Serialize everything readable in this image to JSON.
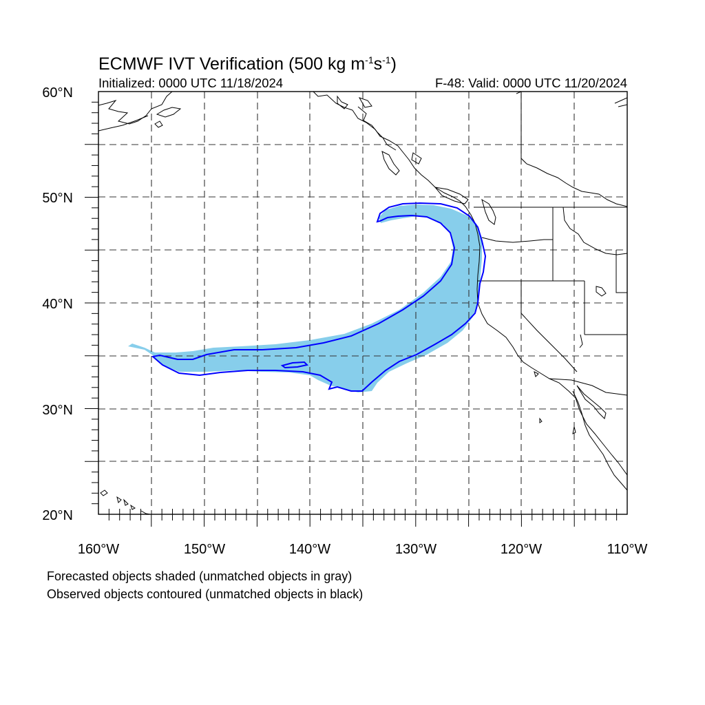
{
  "title": {
    "main": "ECMWF IVT Verification (500 kg m",
    "exp1": "-1",
    "mid": "s",
    "exp2": "-1",
    "end": ")"
  },
  "subtitle": {
    "initialized": "Initialized: 0000 UTC 11/18/2024",
    "valid": "F-48: Valid: 0000 UTC 11/20/2024"
  },
  "map": {
    "lon_range": [
      -160,
      -110
    ],
    "lat_range": [
      20,
      60
    ],
    "lon_labels": [
      "160°W",
      "150°W",
      "140°W",
      "130°W",
      "120°W",
      "110°W"
    ],
    "lat_labels": [
      "20°N",
      "30°N",
      "40°N",
      "50°N",
      "60°N"
    ],
    "grid": "dashed",
    "forecast_fill_color": "#87ceeb",
    "observed_contour_color": "#0000ff",
    "coastline_color": "#000000"
  },
  "notes": {
    "line1": "Forecasted objects shaded (unmatched objects in gray)",
    "line2": "Observed objects contoured (unmatched objects in black)"
  }
}
